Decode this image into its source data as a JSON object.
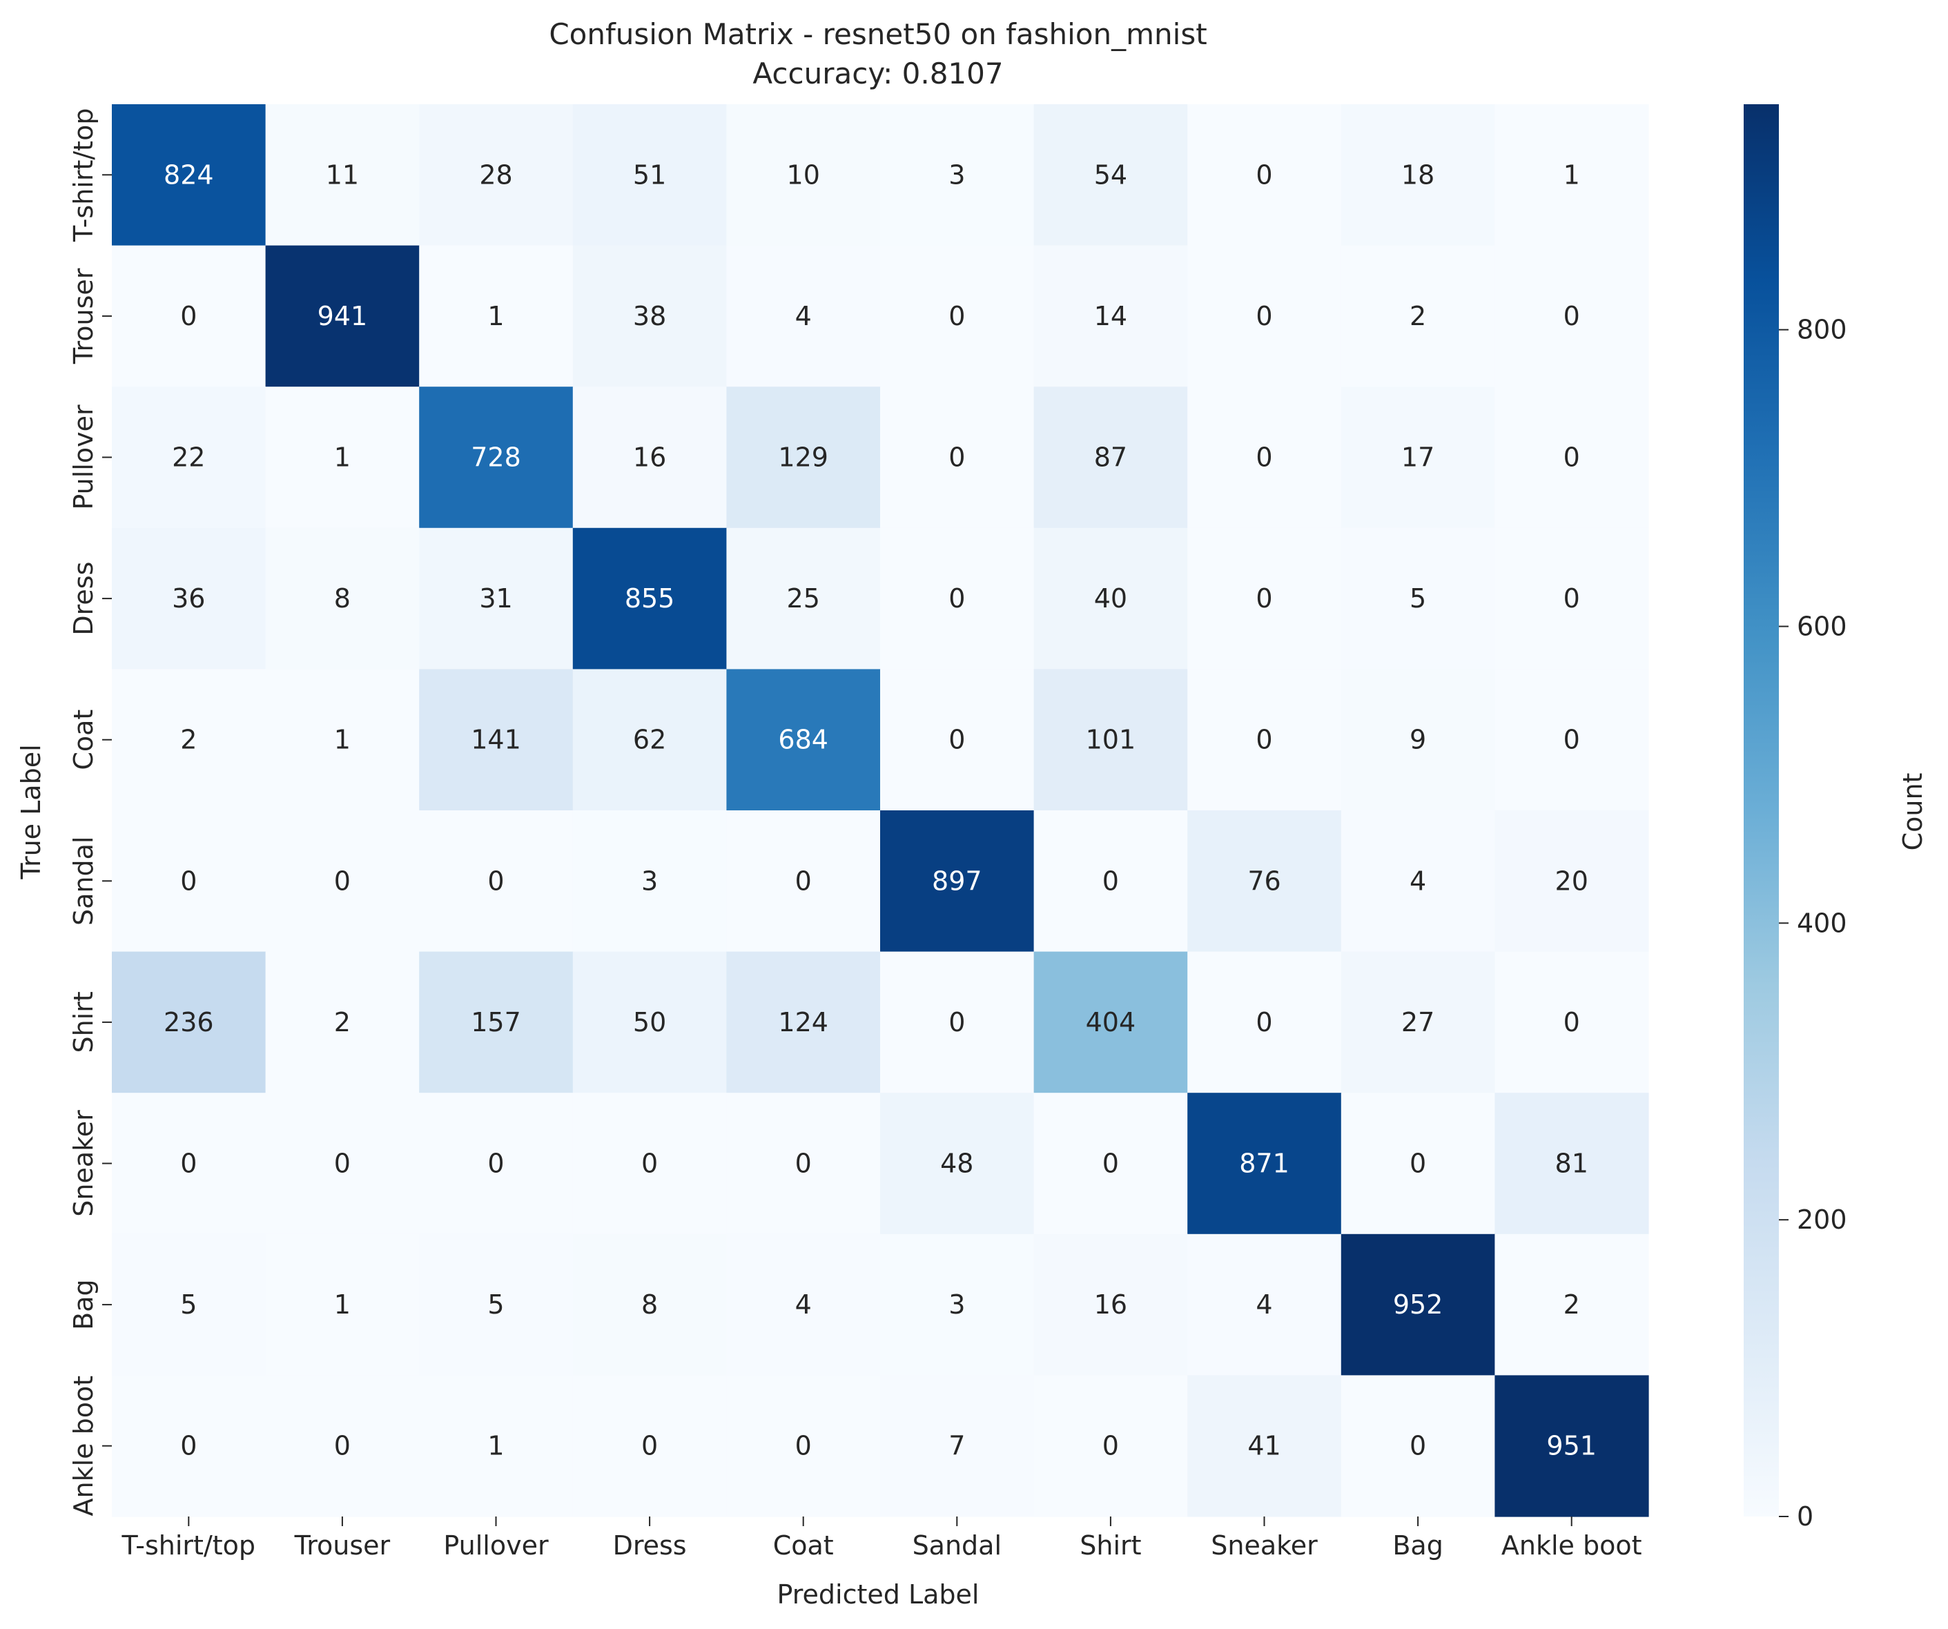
{
  "chart_data": {
    "type": "heatmap",
    "title": "Confusion Matrix - resnet50 on fashion_mnist",
    "subtitle": "Accuracy: 0.8107",
    "xlabel": "Predicted Label",
    "ylabel": "True Label",
    "x_categories": [
      "T-shirt/top",
      "Trouser",
      "Pullover",
      "Dress",
      "Coat",
      "Sandal",
      "Shirt",
      "Sneaker",
      "Bag",
      "Ankle boot"
    ],
    "y_categories": [
      "T-shirt/top",
      "Trouser",
      "Pullover",
      "Dress",
      "Coat",
      "Sandal",
      "Shirt",
      "Sneaker",
      "Bag",
      "Ankle boot"
    ],
    "values": [
      [
        824,
        11,
        28,
        51,
        10,
        3,
        54,
        0,
        18,
        1
      ],
      [
        0,
        941,
        1,
        38,
        4,
        0,
        14,
        0,
        2,
        0
      ],
      [
        22,
        1,
        728,
        16,
        129,
        0,
        87,
        0,
        17,
        0
      ],
      [
        36,
        8,
        31,
        855,
        25,
        0,
        40,
        0,
        5,
        0
      ],
      [
        2,
        1,
        141,
        62,
        684,
        0,
        101,
        0,
        9,
        0
      ],
      [
        0,
        0,
        0,
        3,
        0,
        897,
        0,
        76,
        4,
        20
      ],
      [
        236,
        2,
        157,
        50,
        124,
        0,
        404,
        0,
        27,
        0
      ],
      [
        0,
        0,
        0,
        0,
        0,
        48,
        0,
        871,
        0,
        81
      ],
      [
        5,
        1,
        5,
        8,
        4,
        3,
        16,
        4,
        952,
        2
      ],
      [
        0,
        0,
        1,
        0,
        0,
        7,
        0,
        41,
        0,
        951
      ]
    ],
    "colormap": "Blues",
    "colormap_colors": [
      "#f7fbff",
      "#deebf7",
      "#c6dbef",
      "#9ecae1",
      "#6baed6",
      "#4292c6",
      "#2171b5",
      "#08519c",
      "#08306b"
    ],
    "color_range": [
      0,
      952
    ],
    "colorbar": {
      "label": "Count",
      "ticks": [
        0,
        200,
        400,
        600,
        800
      ]
    },
    "grid": false
  }
}
